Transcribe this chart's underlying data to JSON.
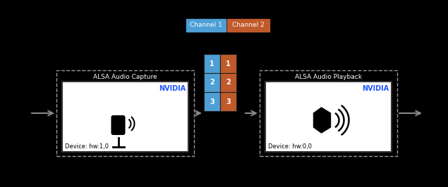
{
  "bg_color": "#000000",
  "channel1_color": "#4d9fd6",
  "channel2_color": "#c05a2a",
  "nvidia_color": "#2255ff",
  "arrow_color": "#888888",
  "channel1_label": "Channel 1",
  "channel2_label": "Channel 2",
  "capture_title": "ALSA Audio Capture",
  "capture_device": "Device: hw:1,0",
  "playback_title": "ALSA Audio Playback",
  "playback_device": "Device: hw:0,0",
  "nvidia_label": "NVIDIA",
  "grid_rows": [
    1,
    2,
    3
  ],
  "figw": 6.35,
  "figh": 2.66,
  "dpi": 100
}
